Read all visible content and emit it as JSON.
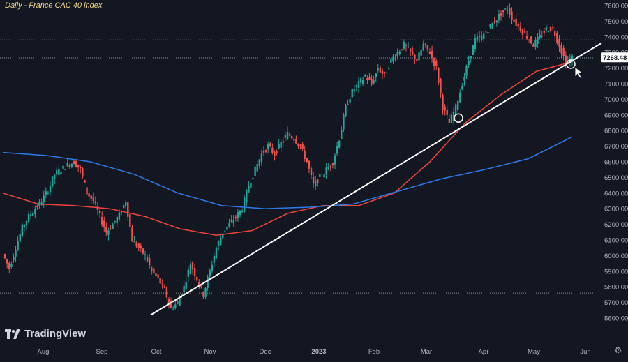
{
  "chart_data": {
    "type": "candlestick",
    "title": "Daily - France CAC 40 index",
    "brand": "TradingView",
    "ylim": [
      5540,
      7660
    ],
    "y_ticks": [
      5600,
      5700,
      5800,
      5900,
      6000,
      6100,
      6200,
      6300,
      6400,
      6500,
      6600,
      6700,
      6800,
      6900,
      7000,
      7100,
      7200,
      7300,
      7400,
      7500,
      7600
    ],
    "x_ticks": [
      "Aug",
      "Sep",
      "Oct",
      "Nov",
      "Dec",
      "2023",
      "Feb",
      "Mar",
      "Apr",
      "May",
      "Jun"
    ],
    "last_price": {
      "value": 7268.48,
      "label": "7268.48"
    },
    "horizontal_levels": [
      7380,
      7265,
      6830,
      5760
    ],
    "close_series": [
      6010,
      5920,
      6050,
      6180,
      6250,
      6300,
      6350,
      6420,
      6520,
      6550,
      6580,
      6600,
      6550,
      6400,
      6350,
      6250,
      6150,
      6200,
      6260,
      6350,
      6100,
      6050,
      6000,
      5900,
      5850,
      5780,
      5660,
      5700,
      5800,
      5950,
      5850,
      5750,
      5900,
      6050,
      6150,
      6200,
      6250,
      6300,
      6450,
      6550,
      6650,
      6700,
      6650,
      6720,
      6780,
      6750,
      6700,
      6600,
      6450,
      6500,
      6550,
      6600,
      6750,
      6950,
      7050,
      7100,
      7150,
      7100,
      7200,
      7150,
      7250,
      7300,
      7350,
      7300,
      7250,
      7350,
      7300,
      7200,
      6950,
      6850,
      6950,
      7100,
      7250,
      7380,
      7400,
      7450,
      7500,
      7550,
      7580,
      7500,
      7450,
      7400,
      7350,
      7400,
      7450,
      7450,
      7350,
      7230,
      7268
    ],
    "moving_averages": [
      {
        "color": "#f2433d",
        "values": [
          6400,
          6330,
          6320,
          6300,
          6250,
          6170,
          6130,
          6160,
          6270,
          6320,
          6320,
          6400,
          6600,
          6850,
          7030,
          7180,
          7240
        ]
      },
      {
        "color": "#2f79e8",
        "values": [
          6660,
          6640,
          6600,
          6520,
          6400,
          6320,
          6300,
          6310,
          6330,
          6410,
          6490,
          6550,
          6620,
          6760
        ]
      }
    ],
    "trendline": {
      "from": [
        0,
        5620
      ],
      "to": [
        1,
        7360
      ]
    },
    "markers": [
      {
        "value": 6880
      },
      {
        "value": 7225
      }
    ]
  }
}
